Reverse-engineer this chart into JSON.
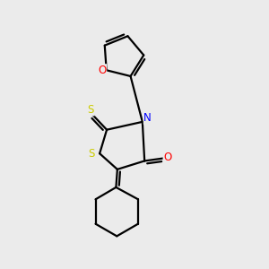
{
  "background_color": "#ebebeb",
  "bond_color": "#000000",
  "atom_colors": {
    "S_yellow": "#cccc00",
    "N": "#0000ff",
    "O": "#ff0000",
    "C": "#000000"
  },
  "lw": 1.6,
  "fontsize": 9
}
